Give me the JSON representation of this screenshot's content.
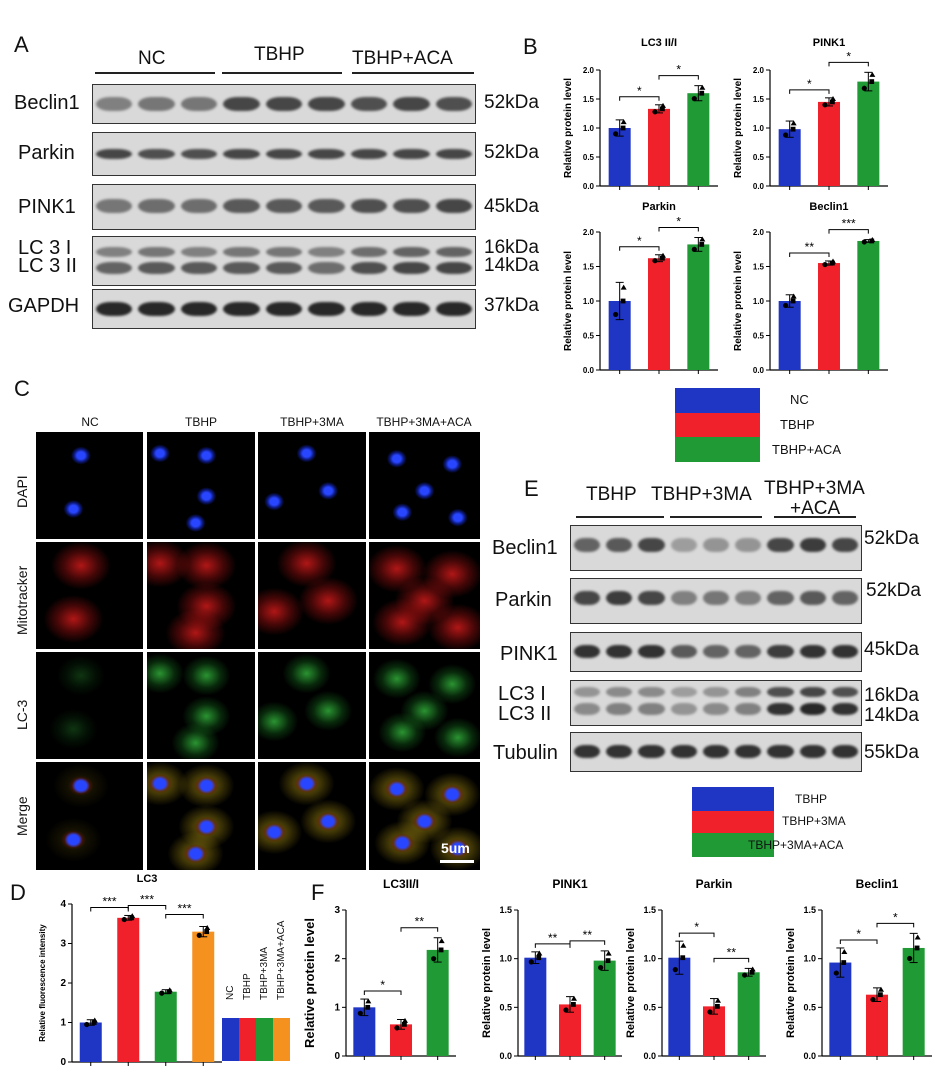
{
  "panels": {
    "A": "A",
    "B": "B",
    "C": "C",
    "D": "D",
    "E": "E",
    "F": "F"
  },
  "panel_a": {
    "groups": [
      "NC",
      "TBHP",
      "TBHP+ACA"
    ],
    "rows": [
      {
        "label": "Beclin1",
        "kda": "52kDa"
      },
      {
        "label": "Parkin",
        "kda": "52kDa"
      },
      {
        "label": "PINK1",
        "kda": "45kDa"
      },
      {
        "label": "LC 3 I",
        "label2": "LC 3 II",
        "kda": "16kDa",
        "kda2": "14kDa"
      },
      {
        "label": "GAPDH",
        "kda": "37kDa"
      }
    ]
  },
  "panel_b_legend": [
    {
      "label": "NC",
      "color": "#1f35c4"
    },
    {
      "label": "TBHP",
      "color": "#f0212b"
    },
    {
      "label": "TBHP+ACA",
      "color": "#1f9a35"
    }
  ],
  "panel_c": {
    "columns": [
      "NC",
      "TBHP",
      "TBHP+3MA",
      "TBHP+3MA+ACA"
    ],
    "rows": [
      "DAPI",
      "Mitotracker",
      "LC-3",
      "Merge"
    ],
    "scale_bar": "5um"
  },
  "panel_e": {
    "groups": [
      "TBHP",
      "TBHP+3MA",
      "TBHP+3MA",
      "+ACA"
    ],
    "rows": [
      {
        "label": "Beclin1",
        "kda": "52kDa"
      },
      {
        "label": "Parkin",
        "kda": "52kDa"
      },
      {
        "label": "PINK1",
        "kda": "45kDa"
      },
      {
        "label": "LC3 I",
        "label2": "LC3 II",
        "kda": "16kDa",
        "kda2": "14kDa"
      },
      {
        "label": "Tubulin",
        "kda": "55kDa"
      }
    ]
  },
  "panel_e_legend": [
    {
      "label": "TBHP",
      "color": "#1f35c4"
    },
    {
      "label": "TBHP+3MA",
      "color": "#f0212b"
    },
    {
      "label": "TBHP+3MA+ACA",
      "color": "#1f9a35"
    }
  ],
  "panel_d_legend": [
    {
      "label": "NC",
      "color": "#1f35c4"
    },
    {
      "label": "TBHP",
      "color": "#f0212b"
    },
    {
      "label": "TBHP+3MA",
      "color": "#1f9a35"
    },
    {
      "label": "TBHP+3MA+ACA",
      "color": "#f5911e"
    }
  ],
  "chart_data": [
    {
      "id": "B1",
      "type": "bar",
      "title": "LC3 II/I",
      "ylabel": "Relative protein level",
      "ylim": [
        0,
        2.0
      ],
      "yticks": [
        0.0,
        0.5,
        1.0,
        1.5,
        2.0
      ],
      "tick_labels": [
        "0.0",
        "0.5",
        "1.0",
        "1.5",
        "2.0"
      ],
      "values": [
        1.0,
        1.33,
        1.6
      ],
      "errors": [
        0.14,
        0.07,
        0.13
      ],
      "colors": [
        "#1f35c4",
        "#f0212b",
        "#1f9a35"
      ],
      "sig": [
        {
          "from": 0,
          "to": 1,
          "label": "*"
        },
        {
          "from": 1,
          "to": 2,
          "label": "*"
        }
      ]
    },
    {
      "id": "B2",
      "type": "bar",
      "title": "PINK1",
      "ylabel": "Relative protein level",
      "ylim": [
        0,
        2.0
      ],
      "yticks": [
        0.0,
        0.5,
        1.0,
        1.5,
        2.0
      ],
      "tick_labels": [
        "0.0",
        "0.5",
        "1.0",
        "1.5",
        "2.0"
      ],
      "values": [
        0.98,
        1.45,
        1.8
      ],
      "errors": [
        0.14,
        0.07,
        0.16
      ],
      "colors": [
        "#1f35c4",
        "#f0212b",
        "#1f9a35"
      ],
      "sig": [
        {
          "from": 0,
          "to": 1,
          "label": "*"
        },
        {
          "from": 1,
          "to": 2,
          "label": "*"
        }
      ]
    },
    {
      "id": "B3",
      "type": "bar",
      "title": "Parkin",
      "ylabel": "Relative protein level",
      "ylim": [
        0,
        2.0
      ],
      "yticks": [
        0.0,
        0.5,
        1.0,
        1.5,
        2.0
      ],
      "tick_labels": [
        "0.0",
        "0.5",
        "1.0",
        "1.5",
        "2.0"
      ],
      "values": [
        1.0,
        1.62,
        1.82
      ],
      "errors": [
        0.27,
        0.05,
        0.1
      ],
      "colors": [
        "#1f35c4",
        "#f0212b",
        "#1f9a35"
      ],
      "sig": [
        {
          "from": 0,
          "to": 1,
          "label": "*"
        },
        {
          "from": 1,
          "to": 2,
          "label": "*"
        }
      ]
    },
    {
      "id": "B4",
      "type": "bar",
      "title": "Beclin1",
      "ylabel": "Relative protein level",
      "ylim": [
        0,
        2.0
      ],
      "yticks": [
        0.0,
        0.5,
        1.0,
        1.5,
        2.0
      ],
      "tick_labels": [
        "0.0",
        "0.5",
        "1.0",
        "1.5",
        "2.0"
      ],
      "values": [
        1.0,
        1.55,
        1.87
      ],
      "errors": [
        0.09,
        0.03,
        0.02
      ],
      "colors": [
        "#1f35c4",
        "#f0212b",
        "#1f9a35"
      ],
      "sig": [
        {
          "from": 0,
          "to": 1,
          "label": "**"
        },
        {
          "from": 1,
          "to": 2,
          "label": "***"
        }
      ]
    },
    {
      "id": "D",
      "type": "bar",
      "title": "LC3",
      "ylabel": "Relative fluorescence intensity",
      "ylim": [
        0,
        4
      ],
      "yticks": [
        0,
        1,
        2,
        3,
        4
      ],
      "tick_labels": [
        "0",
        "1",
        "2",
        "3",
        "4"
      ],
      "values": [
        1.0,
        3.65,
        1.78,
        3.3
      ],
      "errors": [
        0.07,
        0.06,
        0.05,
        0.13
      ],
      "colors": [
        "#1f35c4",
        "#f0212b",
        "#1f9a35",
        "#f5911e"
      ],
      "sig": [
        {
          "from": 0,
          "to": 1,
          "label": "***"
        },
        {
          "from": 1,
          "to": 2,
          "label": "***"
        },
        {
          "from": 2,
          "to": 3,
          "label": "***"
        }
      ]
    },
    {
      "id": "F1",
      "type": "bar",
      "title": "LC3II/I",
      "ylabel": "Relative protein level",
      "ylim": [
        0,
        3
      ],
      "yticks": [
        0,
        1,
        2,
        3
      ],
      "tick_labels": [
        "0",
        "1",
        "2",
        "3"
      ],
      "values": [
        1.0,
        0.65,
        2.18
      ],
      "errors": [
        0.17,
        0.1,
        0.25
      ],
      "colors": [
        "#1f35c4",
        "#f0212b",
        "#1f9a35"
      ],
      "sig": [
        {
          "from": 0,
          "to": 1,
          "label": "*"
        },
        {
          "from": 1,
          "to": 2,
          "label": "**"
        }
      ]
    },
    {
      "id": "F2",
      "type": "bar",
      "title": "PINK1",
      "ylabel": "Relative protein level",
      "ylim": [
        0,
        1.5
      ],
      "yticks": [
        0.0,
        0.5,
        1.0,
        1.5
      ],
      "tick_labels": [
        "0.0",
        "0.5",
        "1.0",
        "1.5"
      ],
      "values": [
        1.01,
        0.53,
        0.98
      ],
      "errors": [
        0.06,
        0.08,
        0.1
      ],
      "colors": [
        "#1f35c4",
        "#f0212b",
        "#1f9a35"
      ],
      "sig": [
        {
          "from": 0,
          "to": 1,
          "label": "**"
        },
        {
          "from": 1,
          "to": 2,
          "label": "**"
        }
      ]
    },
    {
      "id": "F3",
      "type": "bar",
      "title": "Parkin",
      "ylabel": "Relative protein level",
      "ylim": [
        0,
        1.5
      ],
      "yticks": [
        0.0,
        0.5,
        1.0,
        1.5
      ],
      "tick_labels": [
        "0.0",
        "0.5",
        "1.0",
        "1.5"
      ],
      "values": [
        1.01,
        0.51,
        0.86
      ],
      "errors": [
        0.17,
        0.08,
        0.04
      ],
      "colors": [
        "#1f35c4",
        "#f0212b",
        "#1f9a35"
      ],
      "sig": [
        {
          "from": 0,
          "to": 1,
          "label": "*"
        },
        {
          "from": 1,
          "to": 2,
          "label": "**"
        }
      ]
    },
    {
      "id": "F4",
      "type": "bar",
      "title": "Beclin1",
      "ylabel": "Relative protein level",
      "ylim": [
        0,
        1.5
      ],
      "yticks": [
        0.0,
        0.5,
        1.0,
        1.5
      ],
      "tick_labels": [
        "0.0",
        "0.5",
        "1.0",
        "1.5"
      ],
      "values": [
        0.96,
        0.63,
        1.11
      ],
      "errors": [
        0.15,
        0.07,
        0.15
      ],
      "colors": [
        "#1f35c4",
        "#f0212b",
        "#1f9a35"
      ],
      "sig": [
        {
          "from": 0,
          "to": 1,
          "label": "*"
        },
        {
          "from": 1,
          "to": 2,
          "label": "*"
        }
      ]
    }
  ]
}
